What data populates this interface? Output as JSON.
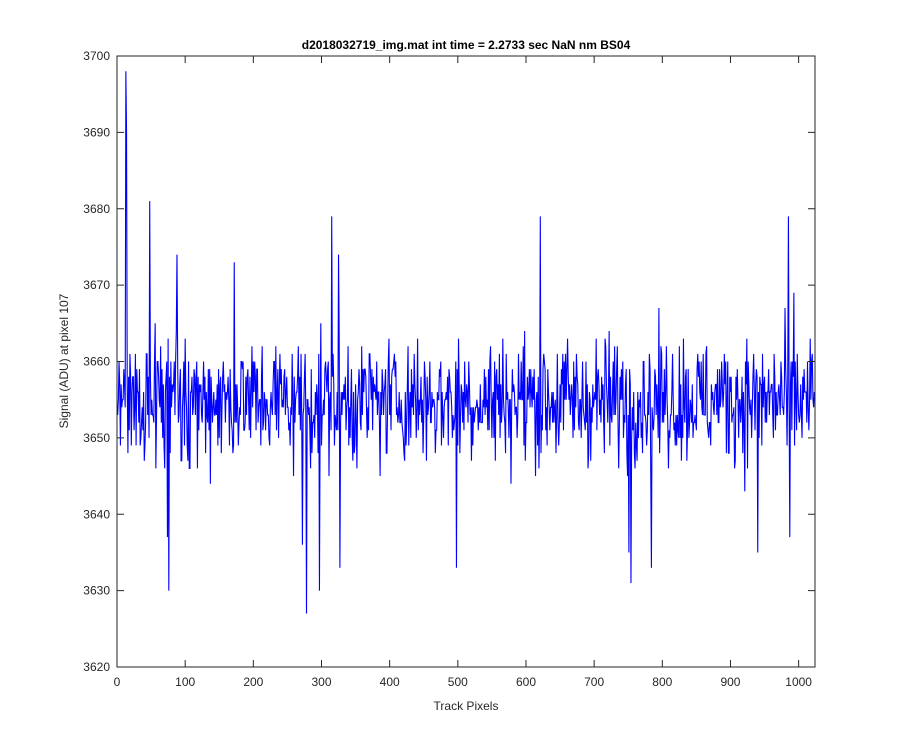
{
  "chart_data": {
    "type": "line",
    "title": "d2018032719_img.mat int time = 2.2733 sec  NaN nm BS04",
    "xlabel": "Track Pixels",
    "ylabel": "Signal (ADU) at pixel 107",
    "xlim": [
      0,
      1024
    ],
    "ylim": [
      3620,
      3700
    ],
    "xticks": [
      0,
      100,
      200,
      300,
      400,
      500,
      600,
      700,
      800,
      900,
      1000
    ],
    "yticks": [
      3620,
      3630,
      3640,
      3650,
      3660,
      3670,
      3680,
      3690,
      3700
    ],
    "grid": false,
    "legend": "none",
    "series": [
      {
        "color": "#0000ff",
        "x_start": 1,
        "x_step": 1,
        "n_points": 1024,
        "mean": 3655,
        "range": [
          3627,
          3698
        ],
        "peaks": [
          {
            "x": 13,
            "y": 3698
          },
          {
            "x": 14,
            "y": 3690
          },
          {
            "x": 48,
            "y": 3681
          },
          {
            "x": 88,
            "y": 3674
          },
          {
            "x": 172,
            "y": 3673
          },
          {
            "x": 315,
            "y": 3679
          },
          {
            "x": 325,
            "y": 3674
          },
          {
            "x": 621,
            "y": 3679
          },
          {
            "x": 985,
            "y": 3679
          },
          {
            "x": 993,
            "y": 3669
          }
        ],
        "troughs": [
          {
            "x": 74,
            "y": 3637
          },
          {
            "x": 76,
            "y": 3630
          },
          {
            "x": 272,
            "y": 3636
          },
          {
            "x": 278,
            "y": 3627
          },
          {
            "x": 297,
            "y": 3630
          },
          {
            "x": 327,
            "y": 3633
          },
          {
            "x": 498,
            "y": 3633
          },
          {
            "x": 751,
            "y": 3635
          },
          {
            "x": 754,
            "y": 3631
          },
          {
            "x": 784,
            "y": 3633
          },
          {
            "x": 940,
            "y": 3635
          },
          {
            "x": 987,
            "y": 3637
          }
        ]
      }
    ]
  }
}
